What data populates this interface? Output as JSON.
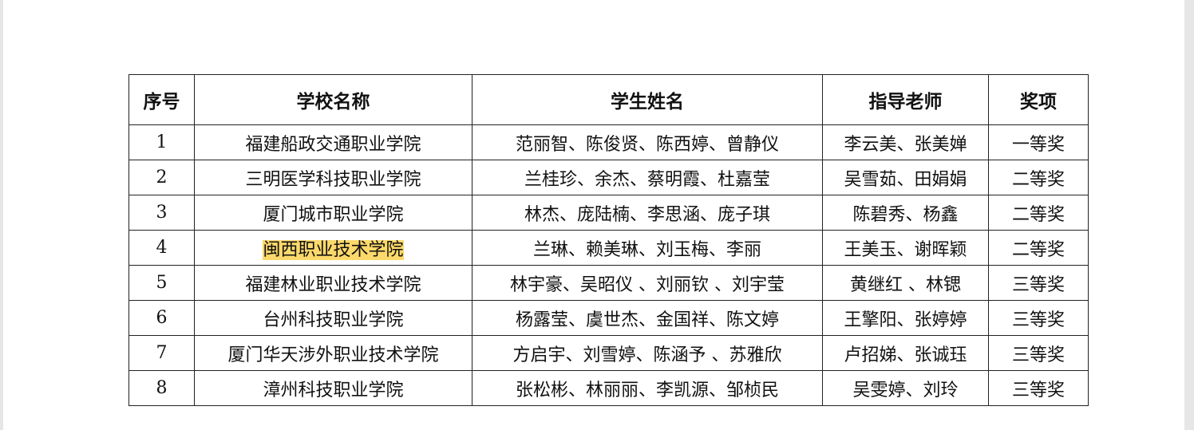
{
  "table": {
    "headers": [
      "序号",
      "学校名称",
      "学生姓名",
      "指导老师",
      "奖项"
    ],
    "rows": [
      [
        "1",
        "福建船政交通职业学院",
        "范丽智、陈俊贤、陈西婷、曾静仪",
        "李云美、张美婵",
        "一等奖"
      ],
      [
        "2",
        "三明医学科技职业学院",
        "兰桂珍、余杰、蔡明霞、杜嘉莹",
        "吴雪茹、田娟娟",
        "二等奖"
      ],
      [
        "3",
        "厦门城市职业学院",
        "林杰、庞陆楠、李思涵、庞子琪",
        "陈碧秀、杨鑫",
        "二等奖"
      ],
      [
        "4",
        "闽西职业技术学院",
        "兰琳、赖美琳、刘玉梅、李丽",
        "王美玉、谢晖颖",
        "二等奖"
      ],
      [
        "5",
        "福建林业职业技术学院",
        "林宇豪、吴昭仪 、刘丽钦 、刘宇莹",
        "黄继红 、林锶",
        "三等奖"
      ],
      [
        "6",
        "台州科技职业学院",
        "杨露莹、虞世杰、金国祥、陈文婷",
        "王擎阳、张婷婷",
        "三等奖"
      ],
      [
        "7",
        "厦门华天涉外职业技术学院",
        "方启宇、刘雪婷、陈涵予 、苏雅欣",
        "卢招娣、张诚珏",
        "三等奖"
      ],
      [
        "8",
        "漳州科技职业学院",
        "张松彬、林丽丽、李凯源、邹桢民",
        "吴雯婷、刘玲",
        "三等奖"
      ]
    ],
    "highlight_color": "#fdd96b"
  }
}
